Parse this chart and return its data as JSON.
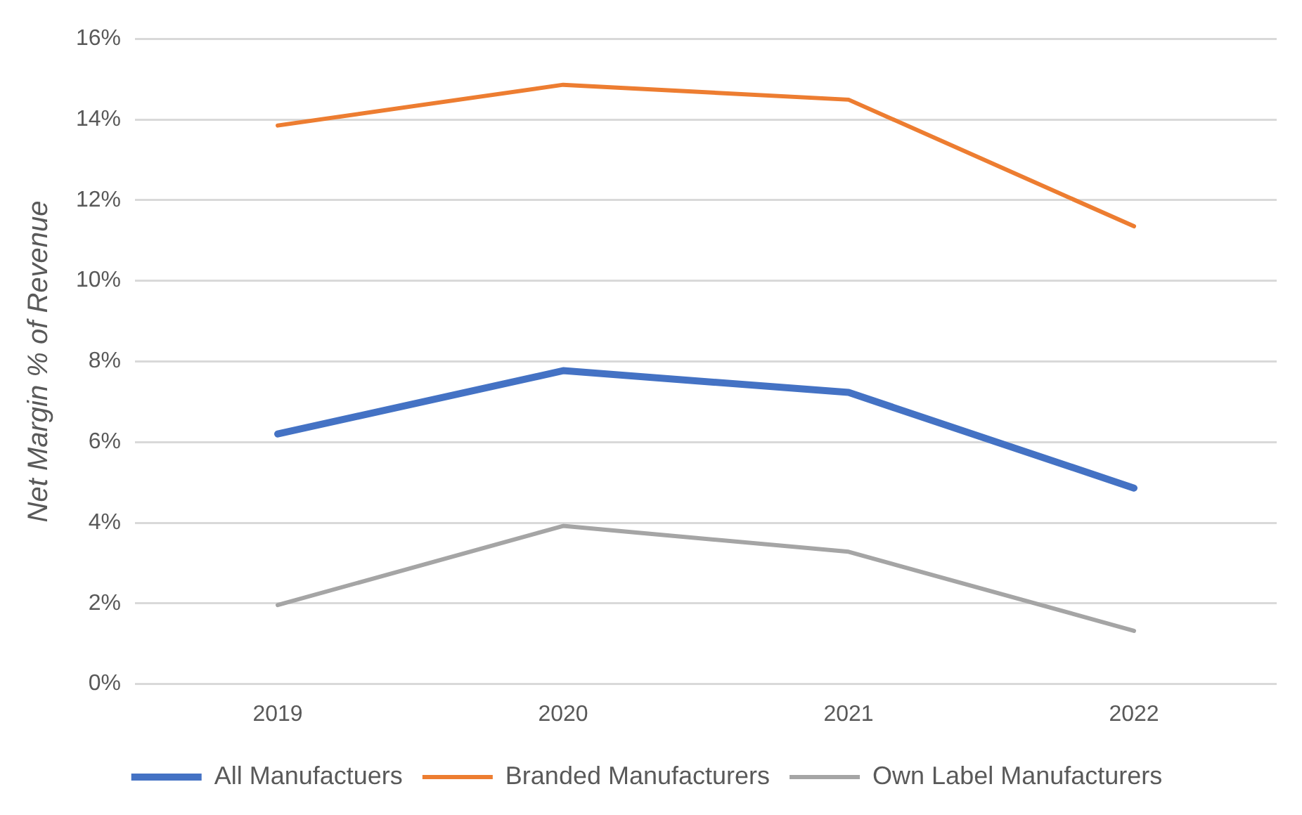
{
  "chart_data": {
    "type": "line",
    "ylabel": "Net Margin % of Revenue",
    "categories": [
      "2019",
      "2020",
      "2021",
      "2022"
    ],
    "series": [
      {
        "name": "All Manufactuers",
        "color": "#4472c4",
        "values": [
          6.2,
          7.77,
          7.23,
          4.86
        ]
      },
      {
        "name": "Branded Manufacturers",
        "color": "#ed7d31",
        "values": [
          13.85,
          14.86,
          14.49,
          11.35
        ]
      },
      {
        "name": "Own Label Manufacturers",
        "color": "#a5a5a5",
        "values": [
          1.96,
          3.92,
          3.28,
          1.32
        ]
      }
    ],
    "ylim": [
      0,
      16
    ],
    "yticks": [
      {
        "value": 0,
        "label": "0%"
      },
      {
        "value": 2,
        "label": "2%"
      },
      {
        "value": 4,
        "label": "4%"
      },
      {
        "value": 6,
        "label": "6%"
      },
      {
        "value": 8,
        "label": "8%"
      },
      {
        "value": 10,
        "label": "10%"
      },
      {
        "value": 12,
        "label": "12%"
      },
      {
        "value": 14,
        "label": "14%"
      },
      {
        "value": 16,
        "label": "16%"
      }
    ],
    "grid": "y",
    "legend": "bottom",
    "marker": "none",
    "line_style": "solid"
  }
}
